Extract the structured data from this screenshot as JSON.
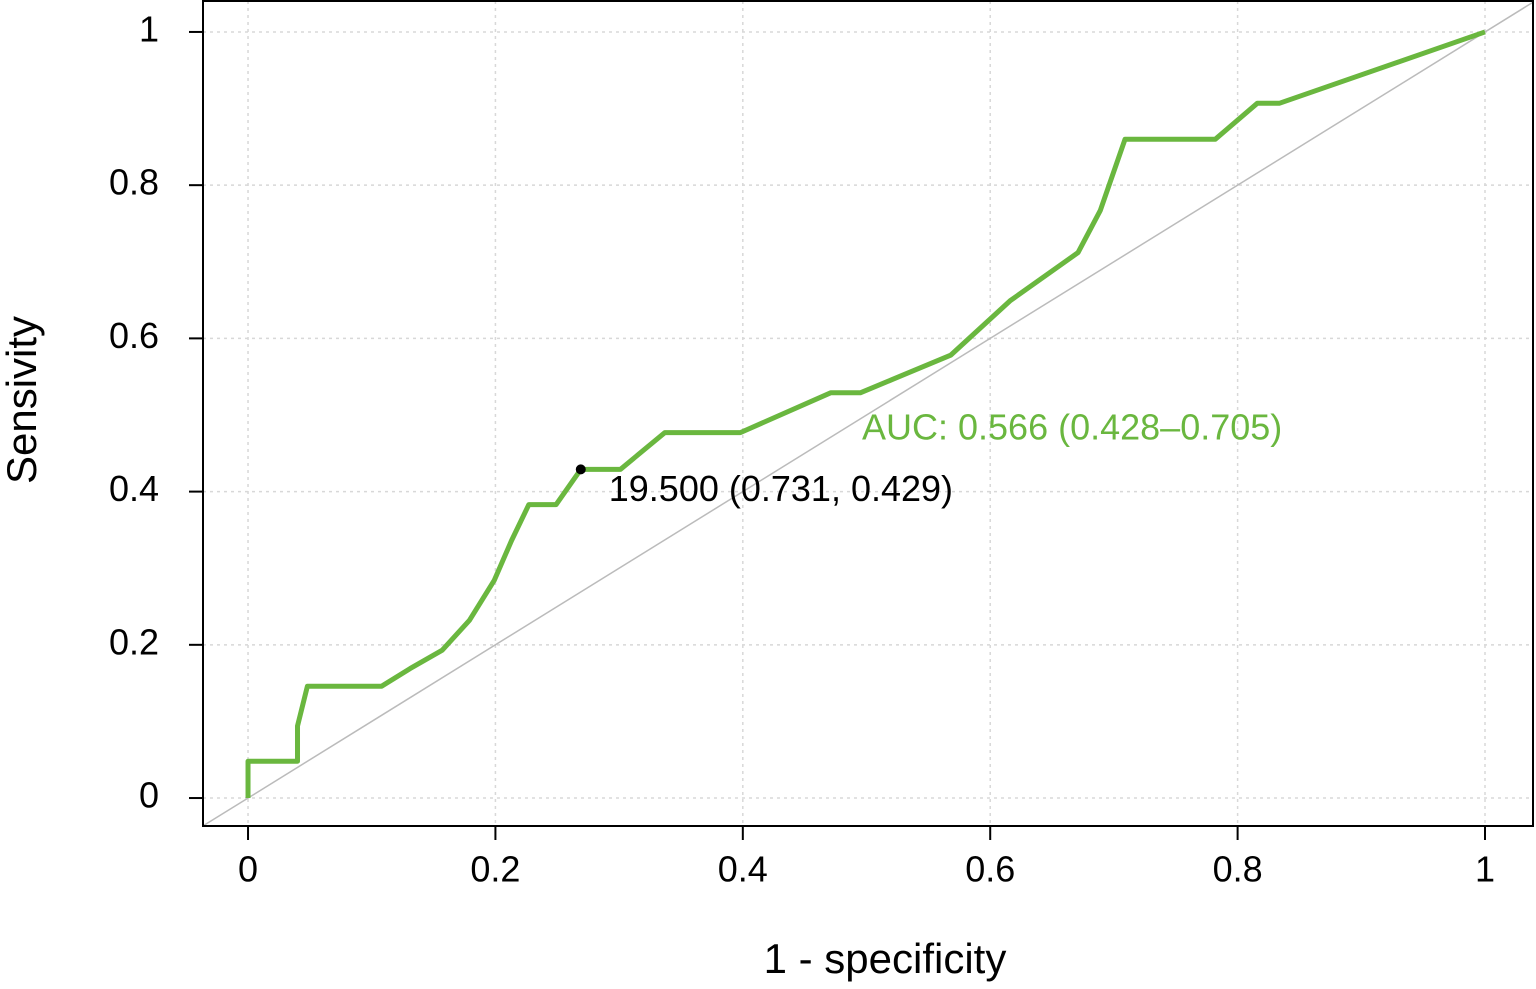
{
  "chart_data": {
    "type": "line",
    "x_label": "1 - specificity",
    "y_label": "Sensivity",
    "x": [
      0,
      0,
      0.04,
      0.04,
      0.048,
      0.108,
      0.131,
      0.157,
      0.179,
      0.199,
      0.213,
      0.227,
      0.249,
      0.269,
      0.301,
      0.337,
      0.398,
      0.471,
      0.495,
      0.568,
      0.616,
      0.671,
      0.689,
      0.709,
      0.782,
      0.816,
      0.834,
      1
    ],
    "values": [
      0,
      0.048,
      0.048,
      0.094,
      0.146,
      0.146,
      0.169,
      0.193,
      0.232,
      0.284,
      0.336,
      0.383,
      0.383,
      0.429,
      0.429,
      0.477,
      0.477,
      0.529,
      0.529,
      0.578,
      0.649,
      0.712,
      0.767,
      0.86,
      0.86,
      0.907,
      0.907,
      1
    ],
    "color": "#6ab73f",
    "cutoff": {
      "x": 0.269,
      "y": 0.429,
      "label": "19.500 (0.731, 0.429)",
      "color": "#000000"
    },
    "auc_label": "AUC: 0.566 (0.428–0.705)",
    "reference_color": "#bbbbbb",
    "xlim": [
      -0.0364,
      1.0388
    ],
    "ylim": [
      -0.0365,
      1.0404
    ],
    "xticks": [
      0,
      0.2,
      0.4,
      0.6,
      0.8,
      1
    ],
    "yticks": [
      0,
      0.2,
      0.4,
      0.6,
      0.8,
      1
    ],
    "grid": true
  }
}
